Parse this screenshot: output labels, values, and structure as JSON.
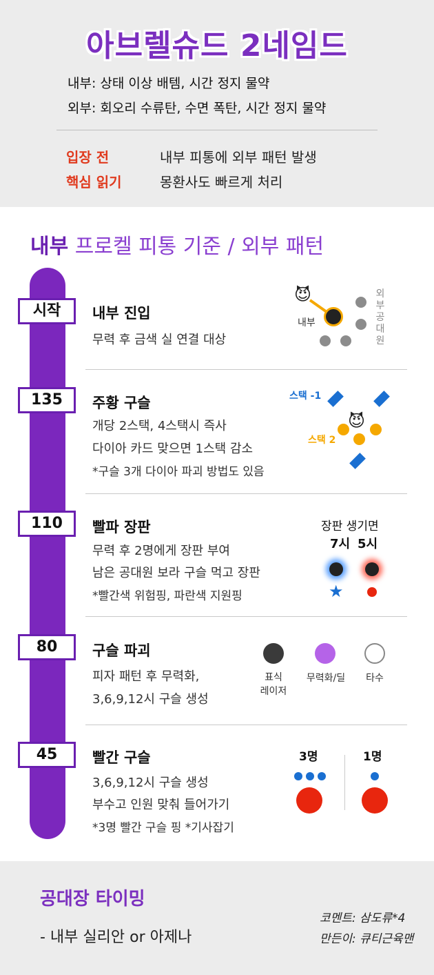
{
  "header": {
    "title": "아브렐슈드 2네임드",
    "line1": "내부: 상태 이상 배템, 시간 정지 물약",
    "line2": "외부: 회오리 수류탄, 수면 폭탄, 시간 정지 물약",
    "tip_label1": "입장 전",
    "tip_label2": "핵심 읽기",
    "tip_text1": "내부 피통에 외부 패턴 발생",
    "tip_text2": "몽환사도 빠르게 처리"
  },
  "section": {
    "title_strong": "내부",
    "title_rest": " 프로켈 피통 기준 / 외부 패턴"
  },
  "phases": [
    {
      "tag": "시작",
      "title": "내부 진입",
      "lines": [
        "무력 후 금색 실 연결 대상"
      ],
      "diagram": {
        "emoji": "😈",
        "inner_label": "내부",
        "outer_label": "외부공대원"
      }
    },
    {
      "tag": "135",
      "title": "주황 구슬",
      "lines": [
        "개당 2스택, 4스택시 즉사",
        "다이아 카드 맞으면 1스택 감소",
        "*구슬 3개 다이아 파괴 방법도 있음"
      ],
      "diagram": {
        "emoji": "😈",
        "blue_label": "스택 -1",
        "orange_label": "스택 2"
      }
    },
    {
      "tag": "110",
      "title": "빨파 장판",
      "lines": [
        "무력 후 2명에게 장판 부여",
        "남은 공대원 보라 구슬 먹고 장판",
        "*빨간색 위험핑, 파란색 지원핑"
      ],
      "diagram": {
        "heading": "장판 생기면",
        "left_time": "7시",
        "right_time": "5시",
        "star": "★"
      }
    },
    {
      "tag": "80",
      "title": "구슬 파괴",
      "lines": [
        "피자 패턴 후 무력화,",
        "3,6,9,12시 구슬 생성"
      ],
      "diagram": {
        "labels": [
          "표식\n레이저",
          "무력화/딜",
          "타수"
        ]
      }
    },
    {
      "tag": "45",
      "title": "빨간 구슬",
      "lines": [
        "3,6,9,12시 구슬 생성",
        "부수고 인원 맞춰 들어가기",
        "*3명 빨간 구슬 핑 *기사잡기"
      ],
      "diagram": {
        "left_label": "3명",
        "right_label": "1명"
      }
    }
  ],
  "footer": {
    "title": "공대장 타이밍",
    "text": "- 내부 실리안 or 아제나",
    "credit1": "코멘트: 삼도류*4",
    "credit2": "만든이: 큐티근육맨"
  },
  "colors": {
    "purple": "#7b27bd",
    "tip_red": "#e03a1e",
    "gold": "#f5a800",
    "blue": "#1a6fd1",
    "red": "#e8260e"
  }
}
